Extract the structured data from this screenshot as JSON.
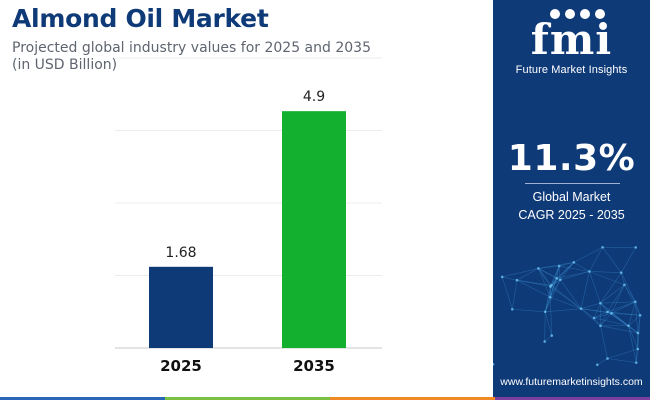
{
  "header": {
    "title": "Almond Oil Market",
    "subtitle_line1": "Projected global industry values for 2025 and 2035",
    "subtitle_line2": "(in USD Billion)"
  },
  "chart_data": {
    "type": "bar",
    "categories": [
      "2025",
      "2035"
    ],
    "values": [
      1.68,
      4.9
    ],
    "value_labels": [
      "1.68",
      "4.9"
    ],
    "colors": [
      "#0f3a78",
      "#12b02e"
    ],
    "ylim": [
      0,
      6
    ],
    "grid": true,
    "legend": "none"
  },
  "sidebar": {
    "logo_mark": "fmi",
    "logo_name": "Future Market Insights",
    "cagr_value": "11.3%",
    "cagr_label_line1": "Global Market",
    "cagr_label_line2": "CAGR 2025 - 2035",
    "website": "www.futuremarketinsights.com",
    "background": "#0f3a78"
  },
  "footer": {
    "colors": [
      "#2a66b8",
      "#79c043",
      "#f08a24",
      "#7b3fa0",
      "#1d9bd6"
    ]
  }
}
